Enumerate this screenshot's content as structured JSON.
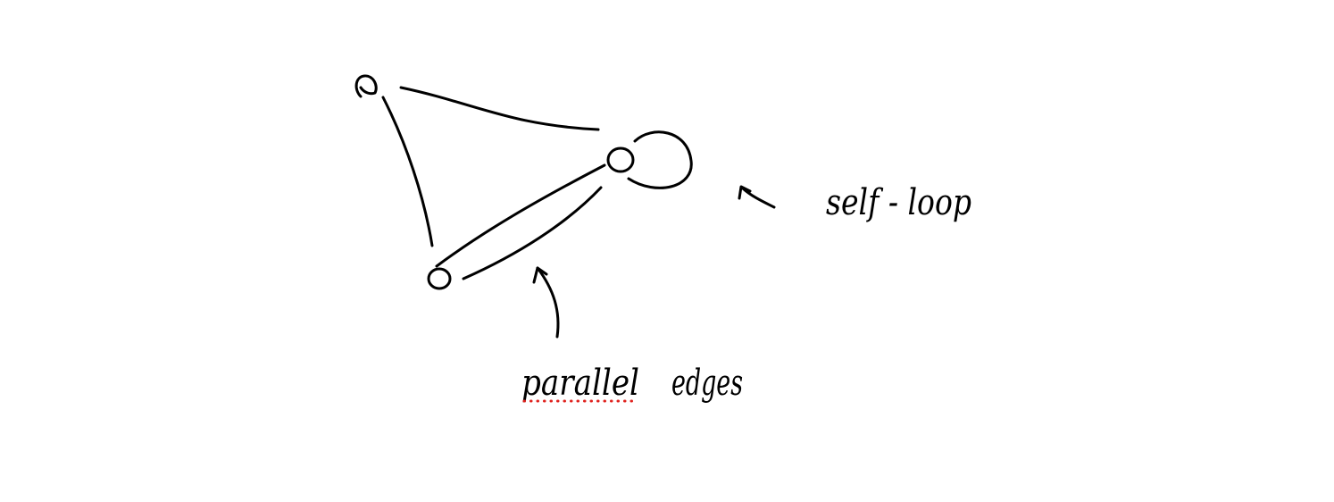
{
  "labels": {
    "parallel": "parallel",
    "edges": "edges",
    "self_loop": "self - loop"
  },
  "colors": {
    "ink": "#000000",
    "spellcheck_underline": "#e0221e",
    "background": "#ffffff"
  }
}
